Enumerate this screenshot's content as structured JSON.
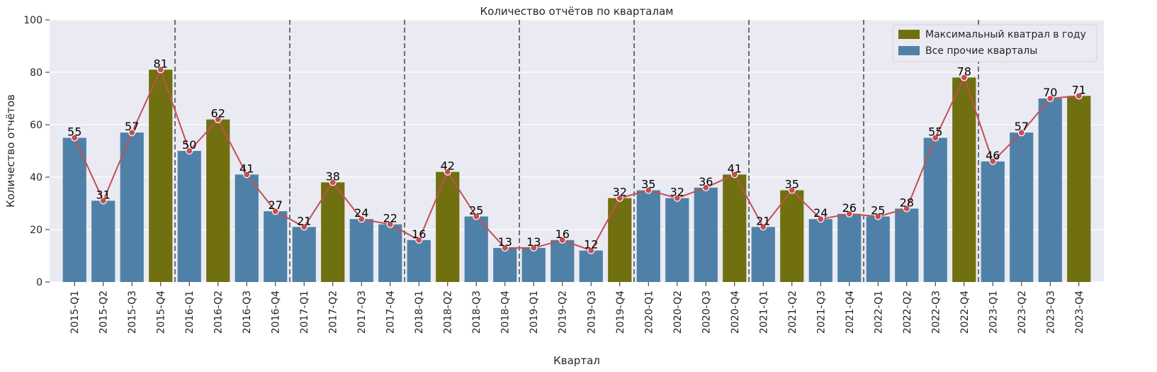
{
  "chart_data": {
    "type": "bar",
    "title": "Количество отчётов по кварталам",
    "xlabel": "Квартал",
    "ylabel": "Количество отчётов",
    "ylim": [
      0,
      100
    ],
    "yticks": [
      0,
      20,
      40,
      60,
      80,
      100
    ],
    "grid": true,
    "legend_position": "top-right",
    "categories": [
      "2015-Q1",
      "2015-Q2",
      "2015-Q3",
      "2015-Q4",
      "2016-Q1",
      "2016-Q2",
      "2016-Q3",
      "2016-Q4",
      "2017-Q1",
      "2017-Q2",
      "2017-Q3",
      "2017-Q4",
      "2018-Q1",
      "2018-Q2",
      "2018-Q3",
      "2018-Q4",
      "2019-Q1",
      "2019-Q2",
      "2019-Q3",
      "2019-Q4",
      "2020-Q1",
      "2020-Q2",
      "2020-Q3",
      "2020-Q4",
      "2021-Q1",
      "2021-Q2",
      "2021-Q3",
      "2021-Q4",
      "2022-Q1",
      "2022-Q2",
      "2022-Q3",
      "2022-Q4",
      "2023-Q1",
      "2023-Q2",
      "2023-Q3",
      "2023-Q4"
    ],
    "values": [
      55,
      31,
      57,
      81,
      50,
      62,
      41,
      27,
      21,
      38,
      24,
      22,
      16,
      42,
      25,
      13,
      13,
      16,
      12,
      32,
      35,
      32,
      36,
      41,
      21,
      35,
      24,
      26,
      25,
      28,
      55,
      78,
      46,
      57,
      70,
      71
    ],
    "highlight_indices": [
      3,
      5,
      9,
      13,
      19,
      23,
      25,
      31,
      35
    ],
    "year_dividers_after": [
      3,
      7,
      11,
      15,
      19,
      23,
      27,
      31
    ],
    "legend": [
      {
        "label": "Максимальный кватрал в году",
        "color": "#707010"
      },
      {
        "label": "Все прочие кварталы",
        "color": "#4f81a8"
      }
    ],
    "colors": {
      "highlight": "#707010",
      "other": "#4f81a8",
      "line": "#c44e52",
      "plot_bg": "#eaeaf2",
      "grid": "#ffffff",
      "divider": "#6e6e6e"
    }
  }
}
